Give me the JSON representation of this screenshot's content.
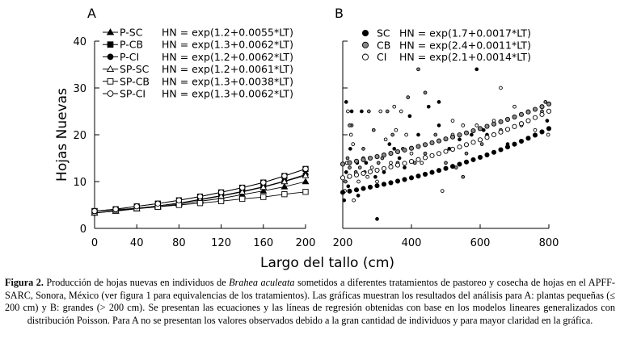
{
  "chart_data": [
    {
      "panel": "A",
      "type": "line",
      "xlim": [
        0,
        200
      ],
      "ylim": [
        0,
        40
      ],
      "xticks": [
        0,
        40,
        80,
        120,
        160,
        200
      ],
      "yticks": [
        0,
        10,
        20,
        30,
        40
      ],
      "x": [
        0,
        20,
        40,
        60,
        80,
        100,
        120,
        140,
        160,
        180,
        200
      ],
      "ylabel": "Hojas Nuevas",
      "legend_position": "top-left",
      "series": [
        {
          "name": "P-SC",
          "equation": "HN = exp(1.2+0.0055*LT)",
          "a": 1.2,
          "b": 0.0055,
          "marker": "triangle",
          "fill": "#000000",
          "values": [
            3.3,
            3.7,
            4.2,
            4.6,
            5.2,
            5.8,
            6.4,
            7.2,
            8.0,
            8.9,
            10.0
          ]
        },
        {
          "name": "P-CB",
          "equation": "HN = exp(1.3+0.0062*LT)",
          "a": 1.3,
          "b": 0.0062,
          "marker": "square",
          "fill": "#000000",
          "values": [
            3.7,
            4.1,
            4.7,
            5.3,
            6.0,
            6.8,
            7.7,
            8.7,
            9.8,
            11.2,
            12.7
          ]
        },
        {
          "name": "P-CI",
          "equation": "HN = exp(1.2+0.0062*LT)",
          "a": 1.2,
          "b": 0.0062,
          "marker": "circle",
          "fill": "#000000",
          "values": [
            3.3,
            3.8,
            4.3,
            4.8,
            5.4,
            6.2,
            7.0,
            7.9,
            8.9,
            10.1,
            11.5
          ]
        },
        {
          "name": "SP-SC",
          "equation": "HN = exp(1.2+0.0061*LT)",
          "a": 1.2,
          "b": 0.0061,
          "marker": "triangle",
          "fill": "#ffffff",
          "values": [
            3.3,
            3.7,
            4.2,
            4.8,
            5.4,
            6.1,
            6.9,
            7.8,
            8.8,
            10.0,
            11.3
          ]
        },
        {
          "name": "SP-CB",
          "equation": "HN = exp(1.3+0.0038*LT)",
          "a": 1.3,
          "b": 0.0038,
          "marker": "square",
          "fill": "#ffffff",
          "values": [
            3.7,
            4.0,
            4.3,
            4.6,
            5.0,
            5.4,
            5.8,
            6.3,
            6.7,
            7.3,
            7.8
          ]
        },
        {
          "name": "SP-CI",
          "equation": "HN = exp(1.3+0.0062*LT)",
          "a": 1.3,
          "b": 0.0062,
          "marker": "circle",
          "fill": "#ffffff",
          "values": [
            3.7,
            4.1,
            4.7,
            5.3,
            6.0,
            6.8,
            7.7,
            8.7,
            9.8,
            11.2,
            12.7
          ]
        }
      ]
    },
    {
      "panel": "B",
      "type": "scatter",
      "xlim": [
        200,
        800
      ],
      "ylim": [
        0,
        40
      ],
      "xticks": [
        200,
        400,
        600,
        800
      ],
      "yticks": [
        0,
        10,
        20,
        30,
        40
      ],
      "fit_x_start": 200,
      "fit_x_end": 800,
      "fit_x_step": 20,
      "legend_position": "top-left",
      "series": [
        {
          "name": "SC",
          "equation": "HN = exp(1.7+0.0017*LT)",
          "a": 1.7,
          "b": 0.0017,
          "marker": "circle",
          "fill": "#000000"
        },
        {
          "name": "CB",
          "equation": "HN = exp(2.4+0.0011*LT)",
          "a": 2.4,
          "b": 0.0011,
          "marker": "circle",
          "fill": "#888888"
        },
        {
          "name": "CI",
          "equation": "HN = exp(2.1+0.0014*LT)",
          "a": 2.1,
          "b": 0.0014,
          "marker": "circle",
          "fill": "#ffffff"
        }
      ],
      "observed": [
        [
          204,
          6
        ],
        [
          206,
          8
        ],
        [
          208,
          10
        ],
        [
          210,
          12
        ],
        [
          212,
          14
        ],
        [
          214,
          15
        ],
        [
          216,
          9
        ],
        [
          218,
          11
        ],
        [
          220,
          13
        ],
        [
          222,
          17
        ],
        [
          224,
          20
        ],
        [
          226,
          22
        ],
        [
          210,
          27
        ],
        [
          215,
          25
        ],
        [
          220,
          22
        ],
        [
          226,
          25
        ],
        [
          232,
          6
        ],
        [
          238,
          12
        ],
        [
          242,
          14
        ],
        [
          246,
          10
        ],
        [
          250,
          13
        ],
        [
          255,
          25
        ],
        [
          260,
          15
        ],
        [
          264,
          12
        ],
        [
          268,
          14
        ],
        [
          272,
          11
        ],
        [
          276,
          25
        ],
        [
          280,
          12
        ],
        [
          285,
          13
        ],
        [
          290,
          21
        ],
        [
          295,
          11
        ],
        [
          300,
          10
        ],
        [
          304,
          14
        ],
        [
          300,
          2
        ],
        [
          310,
          25
        ],
        [
          315,
          15
        ],
        [
          320,
          12
        ],
        [
          325,
          19
        ],
        [
          330,
          25
        ],
        [
          336,
          18
        ],
        [
          340,
          14
        ],
        [
          345,
          20
        ],
        [
          350,
          17
        ],
        [
          355,
          21
        ],
        [
          360,
          14
        ],
        [
          365,
          15
        ],
        [
          370,
          25
        ],
        [
          375,
          17
        ],
        [
          380,
          13
        ],
        [
          385,
          20
        ],
        [
          390,
          28
        ],
        [
          395,
          24
        ],
        [
          400,
          16
        ],
        [
          410,
          14
        ],
        [
          420,
          20
        ],
        [
          430,
          14
        ],
        [
          440,
          16
        ],
        [
          450,
          26
        ],
        [
          460,
          12
        ],
        [
          470,
          20
        ],
        [
          480,
          27
        ],
        [
          490,
          8
        ],
        [
          500,
          14
        ],
        [
          510,
          17
        ],
        [
          520,
          20
        ],
        [
          530,
          13
        ],
        [
          540,
          19
        ],
        [
          550,
          22
        ],
        [
          560,
          16
        ],
        [
          575,
          20
        ],
        [
          590,
          22
        ],
        [
          605,
          18
        ],
        [
          620,
          20
        ],
        [
          640,
          23
        ],
        [
          660,
          21
        ],
        [
          680,
          18
        ],
        [
          700,
          26
        ],
        [
          720,
          22
        ],
        [
          740,
          25
        ],
        [
          760,
          21
        ],
        [
          780,
          25
        ],
        [
          795,
          23
        ],
        [
          798,
          20
        ],
        [
          790,
          27
        ],
        [
          590,
          34
        ],
        [
          660,
          30
        ],
        [
          420,
          34
        ],
        [
          480,
          22
        ],
        [
          520,
          23
        ],
        [
          550,
          11
        ],
        [
          610,
          21
        ],
        [
          230,
          18
        ],
        [
          260,
          17
        ],
        [
          245,
          7
        ],
        [
          350,
          26
        ],
        [
          440,
          29
        ]
      ]
    }
  ],
  "panels": {
    "a_label": "A",
    "b_label": "B",
    "a_xticks": [
      "0",
      "40",
      "80",
      "120",
      "160",
      "200"
    ],
    "b_xticks": [
      "200",
      "400",
      "600",
      "800"
    ],
    "yticks": [
      "0",
      "10",
      "20",
      "30",
      "40"
    ]
  },
  "axes": {
    "ylabel": "Hojas Nuevas",
    "xlabel": "Largo del tallo (cm)"
  },
  "caption": {
    "label": "Figura 2.",
    "part1": " Producción de hojas nuevas en individuos de ",
    "species": "Brahea aculeata",
    "part2": " sometidos a diferentes tratamientos de pastoreo y cosecha de hojas en el APFF-SARC, Sonora, México (ver figura 1 para equivalencias de los tratamientos). Las gráficas muestran los resultados del análisis para A: plantas pequeñas (≤ 200 cm) y B: grandes (> 200 cm). Se presentan las ecuaciones y las líneas de regresión obtenidas con base en los modelos lineares generalizados con distribución Poisson. Para A no se presentan los valores observados debido a la gran cantidad de individuos y para mayor claridad en la gráfica."
  }
}
